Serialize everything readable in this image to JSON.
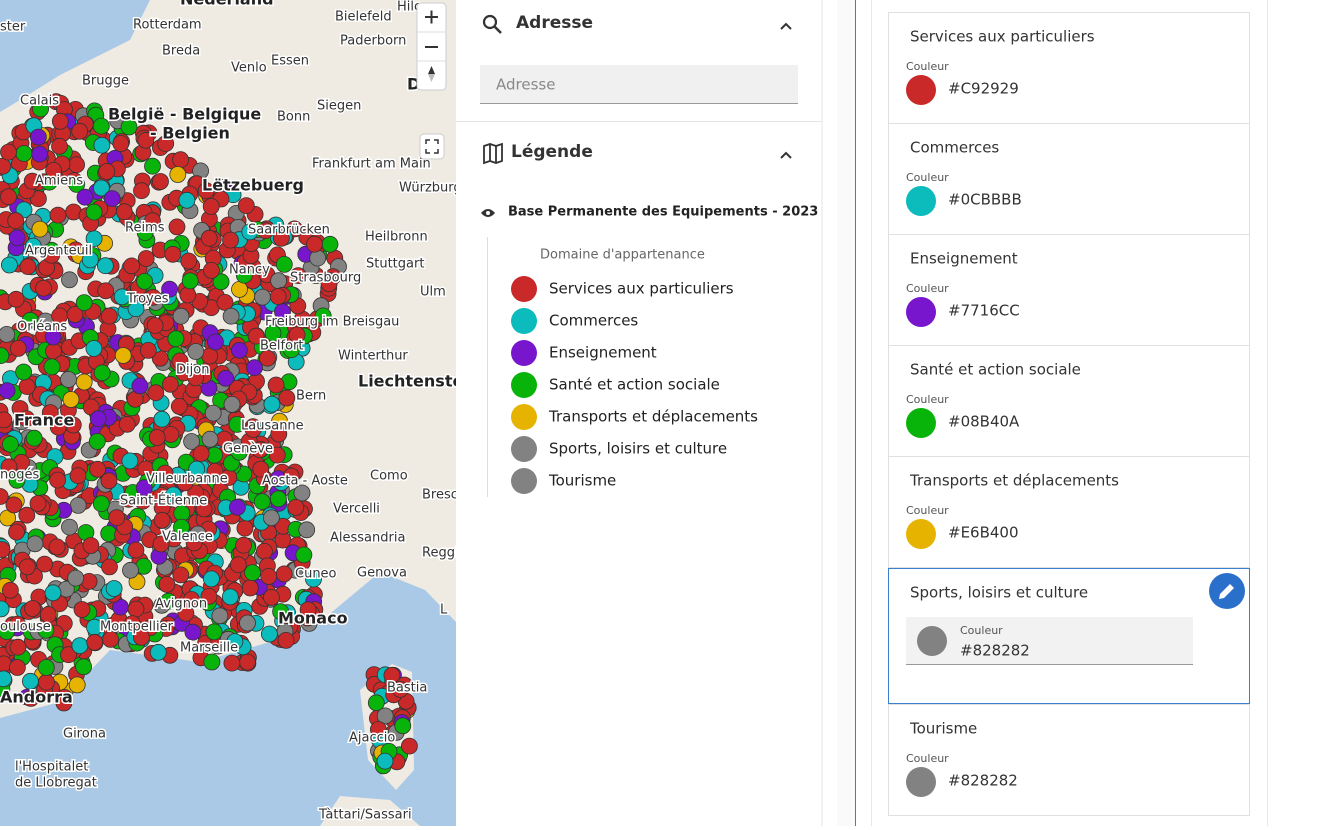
{
  "map": {
    "labels": [
      "Nederland",
      "Hilc",
      "ster",
      "Rotterdam",
      "Bielefeld",
      "Paderborn",
      "Breda",
      "Venlo",
      "Essen",
      "Brugge",
      "D",
      "Calais",
      "België - Belgique",
      "- Belgien",
      "Bonn",
      "Siegen",
      "Frankfurt am Main",
      "Amiens",
      "Lëtzebuerg",
      "Würzburg",
      "Saarbrücken",
      "Reims",
      "Heilbronn",
      "Argenteuil",
      "Nancy",
      "Stuttgart",
      "Strasbourg",
      "Troyes",
      "Ulm",
      "Orléans",
      "Freiburg im Breisgau",
      "Belfort",
      "Winterthur",
      "Dijon",
      "Liechtenstein",
      "Bern",
      "France",
      "Lausanne",
      "Genève",
      "nogés",
      "Como",
      "Villeurbanne",
      "Aosta - Aoste",
      "Bresc",
      "Saint-Étienne",
      "Vercelli",
      "Valence",
      "Alessandria",
      "Reggi",
      "Cuneo",
      "Genova",
      "Avignon",
      "L",
      "Monaco",
      "oulouse",
      "Montpellier",
      "Marseille",
      "Bastia",
      "Andorra",
      "Girona",
      "Ajaccio",
      "l'Hospitalet",
      "de Llobregat",
      "Tàttari/Sassari"
    ]
  },
  "search": {
    "title": "Adresse",
    "placeholder": "Adresse"
  },
  "legend": {
    "title": "Légende",
    "layer": "Base Permanente des Equipements - 2023",
    "group": "Domaine d'appartenance"
  },
  "categories": [
    {
      "name": "Services aux particuliers",
      "color": "#C92929"
    },
    {
      "name": "Commerces",
      "color": "#0CBBBB"
    },
    {
      "name": "Enseignement",
      "color": "#7716CC"
    },
    {
      "name": "Santé et action sociale",
      "color": "#08B40A"
    },
    {
      "name": "Transports et déplacements",
      "color": "#E6B400"
    },
    {
      "name": "Sports, loisirs et culture",
      "color": "#828282"
    },
    {
      "name": "Tourisme",
      "color": "#828282"
    }
  ],
  "editor": {
    "color_label": "Couleur",
    "selected": 5
  }
}
